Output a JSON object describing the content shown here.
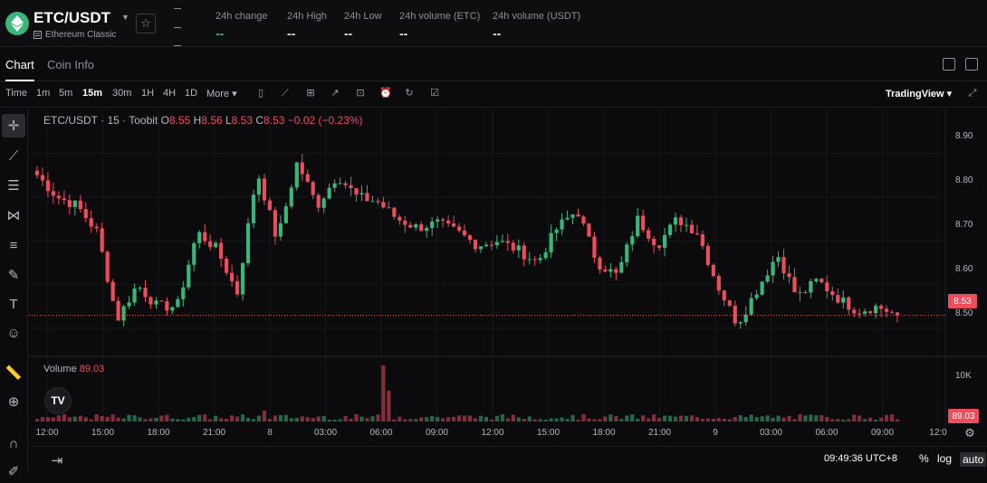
{
  "header": {
    "pair": "ETC/USDT",
    "name": "Ethereum Classic",
    "stats": [
      {
        "label": "24h change",
        "value": "--",
        "green": true
      },
      {
        "label": "24h High",
        "value": "--",
        "green": false
      },
      {
        "label": "24h Low",
        "value": "--",
        "green": false
      },
      {
        "label": "24h volume (ETC)",
        "value": "--",
        "green": false
      },
      {
        "label": "24h volume (USDT)",
        "value": "--",
        "green": false
      }
    ]
  },
  "tabs": [
    "Chart",
    "Coin Info"
  ],
  "toolbar": {
    "intervals": [
      "Time",
      "1m",
      "5m",
      "15m",
      "30m",
      "1H",
      "4H",
      "1D",
      "More"
    ],
    "active_interval": "15m",
    "tradingview_label": "TradingView"
  },
  "legend": {
    "symbol": "ETC/USDT · 15 · Toobit",
    "open_label": "O",
    "open": "8.55",
    "high_label": "H",
    "high": "8.56",
    "low_label": "L",
    "low": "8.53",
    "close_label": "C",
    "close": "8.53",
    "change": "−0.02 (−0.23%)",
    "volume_label": "Volume",
    "volume_value": "89.03"
  },
  "colors": {
    "up": "#3ab67b",
    "down": "#ec4d5c",
    "bg": "#0b0b0d"
  },
  "chart_data": {
    "type": "candlestick",
    "y_ticks": [
      "8.90",
      "8.80",
      "8.70",
      "8.60",
      "8.50"
    ],
    "y_range": [
      8.465,
      8.94
    ],
    "volume_tick": "10K",
    "x_ticks": [
      "12:00",
      "15:00",
      "18:00",
      "21:00",
      "8",
      "03:00",
      "06:00",
      "09:00",
      "12:00",
      "15:00",
      "18:00",
      "21:00",
      "9",
      "03:00",
      "06:00",
      "09:00",
      "12:0"
    ],
    "last_price": "8.53",
    "last_volume": "89.03",
    "close_path": [
      8.85,
      8.8,
      8.78,
      8.72,
      8.52,
      8.6,
      8.55,
      8.55,
      8.72,
      8.68,
      8.58,
      8.86,
      8.7,
      8.88,
      8.78,
      8.85,
      8.8,
      8.79,
      8.75,
      8.73,
      8.74,
      8.72,
      8.69,
      8.7,
      8.68,
      8.65,
      8.73,
      8.77,
      8.65,
      8.62,
      8.75,
      8.69,
      8.75,
      8.72,
      8.6,
      8.51,
      8.59,
      8.67,
      8.57,
      8.61,
      8.57,
      8.54,
      8.55,
      8.53
    ]
  },
  "footer": {
    "clock": "09:49:36 UTC+8",
    "percent": "%",
    "log": "log",
    "auto": "auto"
  }
}
